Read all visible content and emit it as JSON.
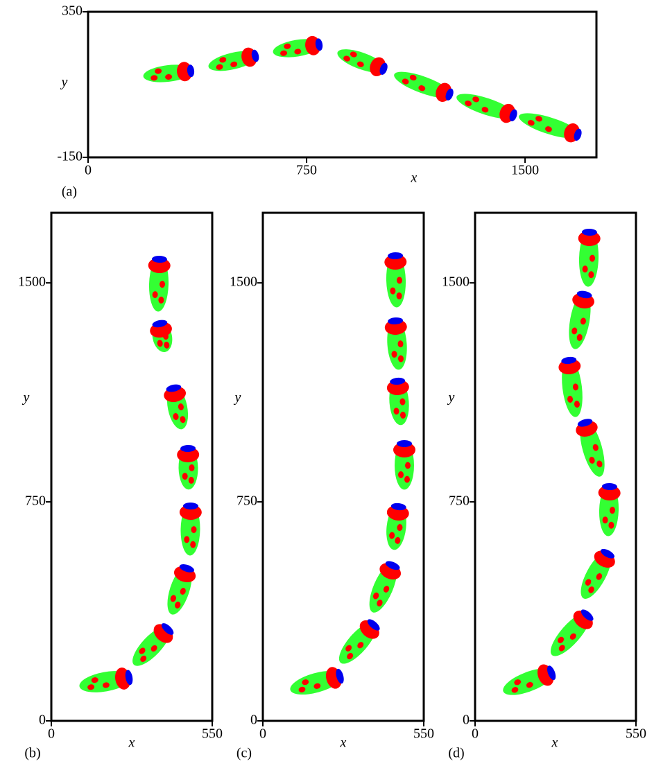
{
  "panels": [
    {
      "label": "(a)",
      "xlabel": "x",
      "ylabel": "y",
      "xlim": [
        0,
        1745
      ],
      "ylim": [
        -150,
        350
      ],
      "xticks": [
        0,
        750,
        1500
      ],
      "yticks": [
        -150,
        350
      ]
    },
    {
      "label": "(b)",
      "xlabel": "x",
      "ylabel": "y",
      "xlim": [
        0,
        550
      ],
      "ylim": [
        0,
        1740
      ],
      "xticks": [
        0,
        550
      ],
      "yticks": [
        0,
        750,
        1500
      ]
    },
    {
      "label": "(c)",
      "xlabel": "x",
      "ylabel": "y",
      "xlim": [
        0,
        550
      ],
      "ylim": [
        0,
        1740
      ],
      "xticks": [
        0,
        550
      ],
      "yticks": [
        0,
        750,
        1500
      ]
    },
    {
      "label": "(d)",
      "xlabel": "x",
      "ylabel": "y",
      "xlim": [
        0,
        550
      ],
      "ylim": [
        0,
        1740
      ],
      "xticks": [
        0,
        550
      ],
      "yticks": [
        0,
        750,
        1500
      ]
    }
  ]
}
